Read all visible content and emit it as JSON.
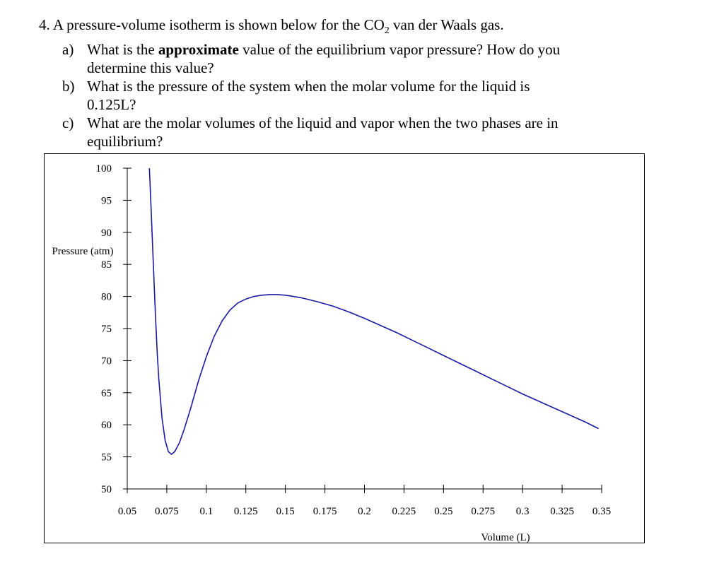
{
  "problem": {
    "number": "4.",
    "stem_before": "A pressure-volume isotherm is shown below for the CO",
    "stem_sub": "2",
    "stem_after": " van der Waals gas.",
    "parts": [
      {
        "label": "a)",
        "before": "What is the ",
        "bold": "approximate",
        "after": " value of the equilibrium vapor pressure? How do you",
        "cont": "determine this value?"
      },
      {
        "label": "b)",
        "before": "What is the pressure of the system when the molar volume for the liquid is",
        "bold": "",
        "after": "",
        "cont": "0.125L?"
      },
      {
        "label": "c)",
        "before": "What are the molar volumes of the liquid and vapor when the two phases are in",
        "bold": "",
        "after": "",
        "cont": "equilibrium?"
      }
    ]
  },
  "chart_data": {
    "type": "line",
    "ylabel": "Pressure (atm)",
    "xlabel": "Volume (L)",
    "xlim": [
      0.05,
      0.35
    ],
    "ylim": [
      50,
      100
    ],
    "x_ticks": [
      "0.05",
      "0.075",
      "0.1",
      "0.125",
      "0.15",
      "0.175",
      "0.2",
      "0.225",
      "0.25",
      "0.275",
      "0.3",
      "0.325",
      "0.35"
    ],
    "y_ticks": [
      "100",
      "95",
      "90",
      "85",
      "80",
      "75",
      "70",
      "65",
      "60",
      "55",
      "50"
    ],
    "grid": false,
    "line_color": "#1a1aa0",
    "series": [
      {
        "x": [
          0.064,
          0.065,
          0.066,
          0.067,
          0.068,
          0.069,
          0.07,
          0.072,
          0.074,
          0.076,
          0.078,
          0.08,
          0.083,
          0.086,
          0.09,
          0.095,
          0.1,
          0.105,
          0.11,
          0.115,
          0.12,
          0.125,
          0.13,
          0.135,
          0.14,
          0.145,
          0.15,
          0.155,
          0.16,
          0.17,
          0.18,
          0.19,
          0.2,
          0.21,
          0.22,
          0.23,
          0.24,
          0.25,
          0.26,
          0.27,
          0.28,
          0.29,
          0.3,
          0.31,
          0.32,
          0.33,
          0.34,
          0.348
        ],
        "y": [
          100,
          94,
          88,
          82,
          76,
          71,
          67,
          61,
          57.5,
          55.8,
          55.4,
          55.8,
          57.2,
          59.3,
          62.5,
          66.8,
          70.6,
          73.8,
          76.2,
          77.9,
          79.0,
          79.6,
          80.0,
          80.2,
          80.3,
          80.3,
          80.2,
          80.0,
          79.8,
          79.2,
          78.5,
          77.6,
          76.6,
          75.5,
          74.4,
          73.2,
          72.0,
          70.8,
          69.6,
          68.4,
          67.2,
          66.0,
          64.8,
          63.7,
          62.6,
          61.5,
          60.4,
          59.4
        ]
      }
    ]
  }
}
